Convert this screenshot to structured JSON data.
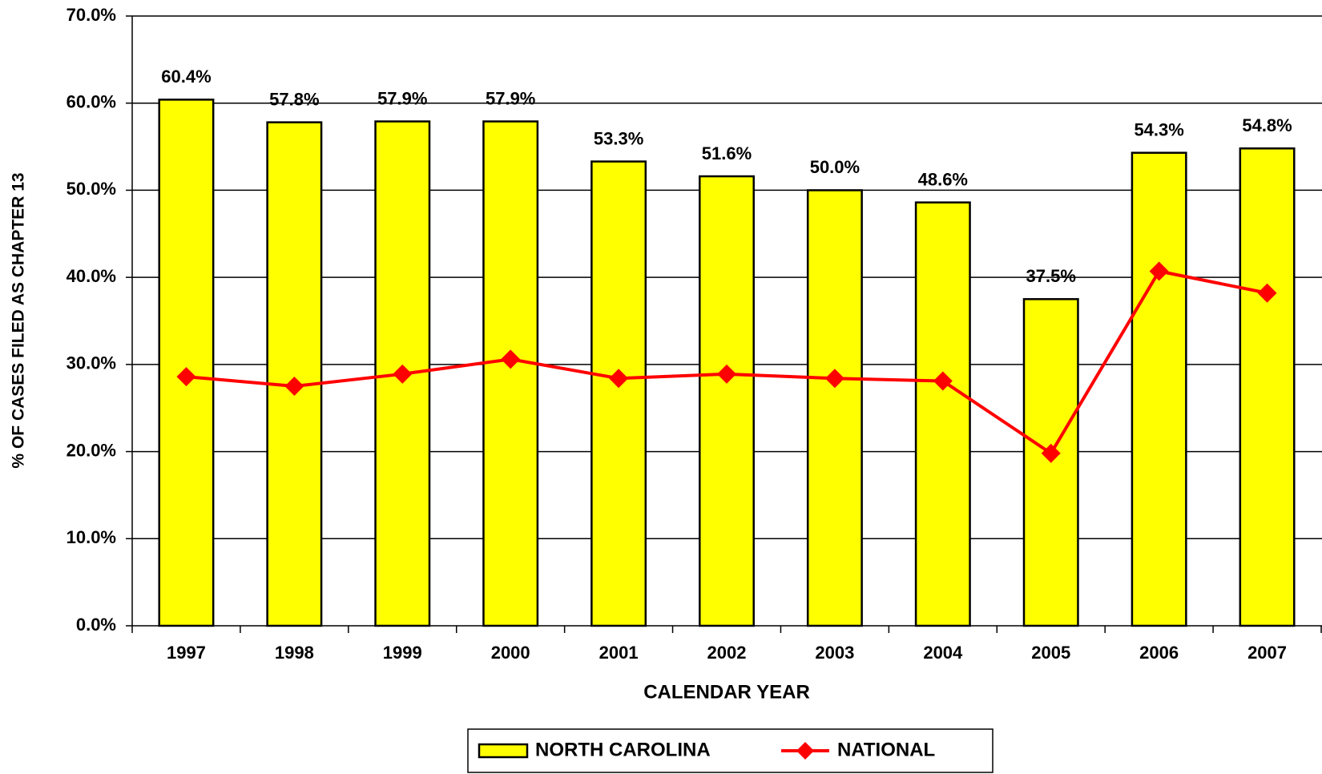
{
  "chart_data": {
    "type": "bar_line",
    "y_axis_label": "% OF CASES FILED AS CHAPTER 13",
    "x_axis_label": "CALENDAR YEAR",
    "categories": [
      "1997",
      "1998",
      "1999",
      "2000",
      "2001",
      "2002",
      "2003",
      "2004",
      "2005",
      "2006",
      "2007"
    ],
    "series": [
      {
        "name": "NORTH CAROLINA",
        "type": "bar",
        "color": "#ffff00",
        "values": [
          60.4,
          57.8,
          57.9,
          57.9,
          53.3,
          51.6,
          50.0,
          48.6,
          37.5,
          54.3,
          54.8
        ],
        "value_labels": [
          "60.4%",
          "57.8%",
          "57.9%",
          "57.9%",
          "53.3%",
          "51.6%",
          "50.0%",
          "48.6%",
          "37.5%",
          "54.3%",
          "54.8%"
        ]
      },
      {
        "name": "NATIONAL",
        "type": "line",
        "color": "#ff0000",
        "values": [
          28.6,
          27.5,
          28.9,
          30.6,
          28.4,
          28.9,
          28.4,
          28.1,
          19.8,
          40.7,
          38.2
        ]
      }
    ],
    "ylim": [
      0,
      70
    ],
    "yticks": [
      {
        "value": 0,
        "label": "0.0%"
      },
      {
        "value": 10,
        "label": "10.0%"
      },
      {
        "value": 20,
        "label": "20.0%"
      },
      {
        "value": 30,
        "label": "30.0%"
      },
      {
        "value": 40,
        "label": "40.0%"
      },
      {
        "value": 50,
        "label": "50.0%"
      },
      {
        "value": 60,
        "label": "60.0%"
      },
      {
        "value": 70,
        "label": "70.0%"
      }
    ],
    "grid": true,
    "legend": "bottom"
  }
}
